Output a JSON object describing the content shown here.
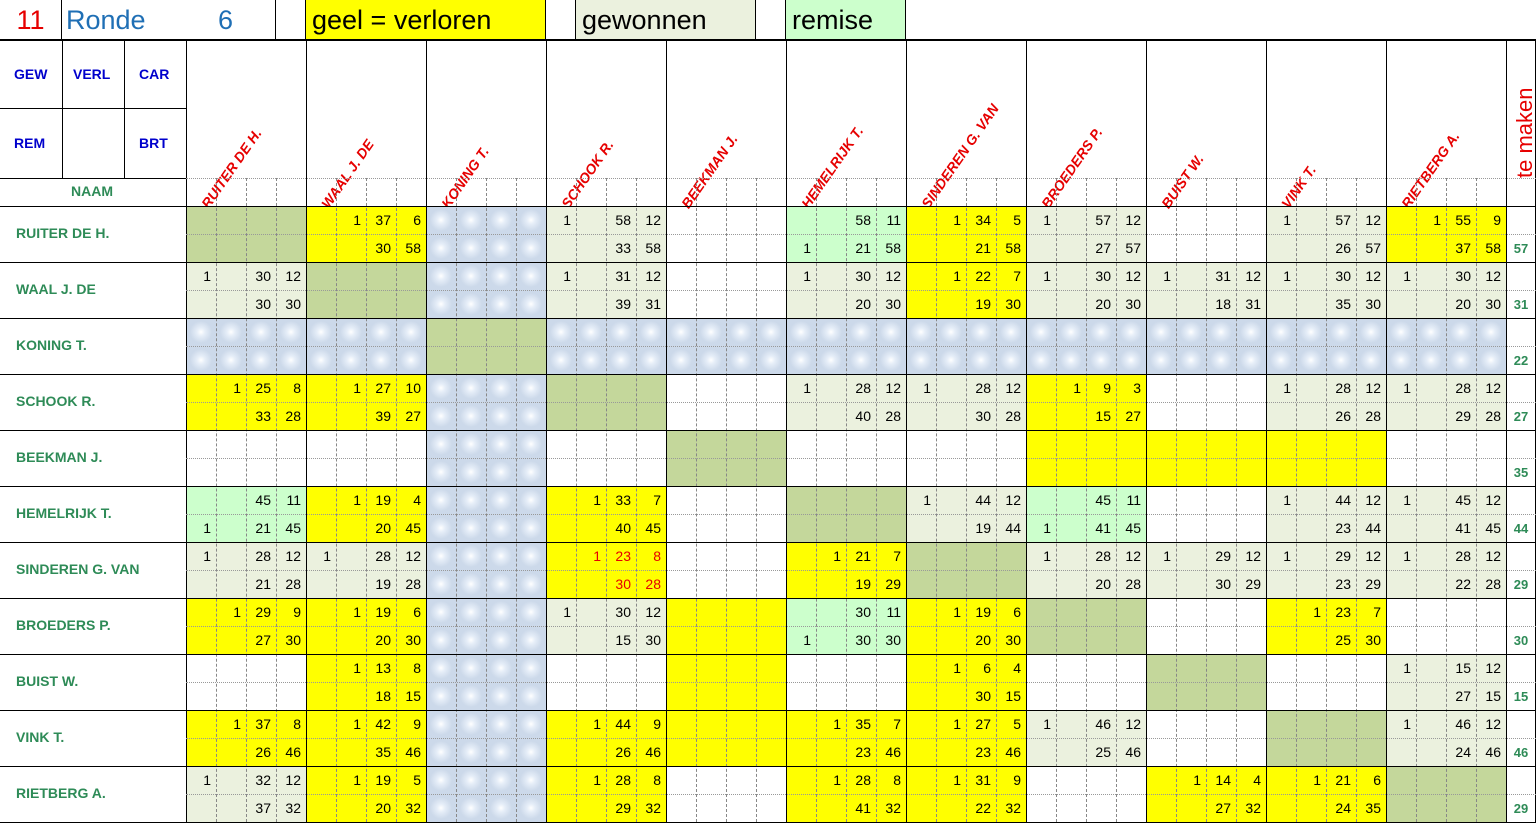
{
  "title_bar": {
    "number": "11",
    "ronde_label": "Ronde",
    "ronde_value": "6",
    "legend_yellow": "geel = verloren",
    "legend_won": "gewonnen",
    "legend_draw": "remise"
  },
  "header_labels": {
    "gew": "GEW",
    "verl": "VERL",
    "car": "CAR",
    "rem": "REM",
    "brt": "BRT",
    "naam": "NAAM",
    "te_maken": "te maken"
  },
  "colors": {
    "yellow": "#ffff00",
    "won": "#ebf1de",
    "draw": "#ccffcc",
    "self": "#c4d79b",
    "absent": "#ccd9ea",
    "red": "#e60000",
    "blue": "#0000cc",
    "green": "#2e8b57"
  },
  "players": [
    {
      "name": "RUITER DE H.",
      "col_name": "RUITER DE H.",
      "te_maken": "57"
    },
    {
      "name": "WAAL J. DE",
      "col_name": "WAAL J. DE",
      "te_maken": "31"
    },
    {
      "name": "KONING T.",
      "col_name": "KONING T.",
      "te_maken": "22"
    },
    {
      "name": "SCHOOK R.",
      "col_name": "SCHOOK R.",
      "te_maken": "27"
    },
    {
      "name": "BEEKMAN J.",
      "col_name": "BEEKMAN J.",
      "te_maken": "35"
    },
    {
      "name": "HEMELRIJK T.",
      "col_name": "HEMELRIJK T.",
      "te_maken": "44"
    },
    {
      "name": "SINDEREN G. VAN",
      "col_name": "SINDEREN G. VAN",
      "te_maken": "29"
    },
    {
      "name": "BROEDERS P.",
      "col_name": "BROEDERS P.",
      "te_maken": "30"
    },
    {
      "name": "BUIST W.",
      "col_name": "BUIST W.",
      "te_maken": "15"
    },
    {
      "name": "VINK T.",
      "col_name": "VINK T.",
      "te_maken": "46"
    },
    {
      "name": "RIETBERG A.",
      "col_name": "RIETBERG A.",
      "te_maken": "29"
    }
  ],
  "matrix": [
    [
      {
        "c": "self"
      },
      {
        "c": "y",
        "r1": [
          "",
          "1",
          "37",
          "6"
        ],
        "r2": [
          "",
          "",
          "30",
          "58"
        ]
      },
      {
        "c": "absent"
      },
      {
        "c": "w",
        "r1": [
          "1",
          "",
          "58",
          "12"
        ],
        "r2": [
          "",
          "",
          "33",
          "58"
        ]
      },
      {
        "c": "e"
      },
      {
        "c": "d",
        "r1": [
          "",
          "",
          "58",
          "11"
        ],
        "r2": [
          "1",
          "",
          "21",
          "58"
        ]
      },
      {
        "c": "y",
        "r1": [
          "",
          "1",
          "34",
          "5"
        ],
        "r2": [
          "",
          "",
          "21",
          "58"
        ]
      },
      {
        "c": "w",
        "r1": [
          "1",
          "",
          "57",
          "12"
        ],
        "r2": [
          "",
          "",
          "27",
          "57"
        ]
      },
      {
        "c": "e"
      },
      {
        "c": "w",
        "r1": [
          "1",
          "",
          "57",
          "12"
        ],
        "r2": [
          "",
          "",
          "26",
          "57"
        ]
      },
      {
        "c": "y",
        "r1": [
          "",
          "1",
          "55",
          "9"
        ],
        "r2": [
          "",
          "",
          "37",
          "58"
        ]
      }
    ],
    [
      {
        "c": "w",
        "r1": [
          "1",
          "",
          "30",
          "12"
        ],
        "r2": [
          "",
          "",
          "30",
          "30"
        ]
      },
      {
        "c": "self"
      },
      {
        "c": "absent"
      },
      {
        "c": "w",
        "r1": [
          "1",
          "",
          "31",
          "12"
        ],
        "r2": [
          "",
          "",
          "39",
          "31"
        ]
      },
      {
        "c": "e"
      },
      {
        "c": "w",
        "r1": [
          "1",
          "",
          "30",
          "12"
        ],
        "r2": [
          "",
          "",
          "20",
          "30"
        ]
      },
      {
        "c": "y",
        "r1": [
          "",
          "1",
          "22",
          "7"
        ],
        "r2": [
          "",
          "",
          "19",
          "30"
        ]
      },
      {
        "c": "w",
        "r1": [
          "1",
          "",
          "30",
          "12"
        ],
        "r2": [
          "",
          "",
          "20",
          "30"
        ]
      },
      {
        "c": "w",
        "r1": [
          "1",
          "",
          "31",
          "12"
        ],
        "r2": [
          "",
          "",
          "18",
          "31"
        ]
      },
      {
        "c": "w",
        "r1": [
          "1",
          "",
          "30",
          "12"
        ],
        "r2": [
          "",
          "",
          "35",
          "30"
        ]
      },
      {
        "c": "w",
        "r1": [
          "1",
          "",
          "30",
          "12"
        ],
        "r2": [
          "",
          "",
          "20",
          "30"
        ]
      }
    ],
    [
      {
        "c": "absent"
      },
      {
        "c": "absent"
      },
      {
        "c": "self"
      },
      {
        "c": "absent"
      },
      {
        "c": "absent"
      },
      {
        "c": "absent"
      },
      {
        "c": "absent"
      },
      {
        "c": "absent"
      },
      {
        "c": "absent"
      },
      {
        "c": "absent"
      },
      {
        "c": "absent"
      }
    ],
    [
      {
        "c": "y",
        "r1": [
          "",
          "1",
          "25",
          "8"
        ],
        "r2": [
          "",
          "",
          "33",
          "28"
        ]
      },
      {
        "c": "y",
        "r1": [
          "",
          "1",
          "27",
          "10"
        ],
        "r2": [
          "",
          "",
          "39",
          "27"
        ]
      },
      {
        "c": "absent"
      },
      {
        "c": "self"
      },
      {
        "c": "e"
      },
      {
        "c": "w",
        "r1": [
          "1",
          "",
          "28",
          "12"
        ],
        "r2": [
          "",
          "",
          "40",
          "28"
        ]
      },
      {
        "c": "w",
        "r1": [
          "1",
          "",
          "28",
          "12"
        ],
        "r2": [
          "",
          "",
          "30",
          "28"
        ]
      },
      {
        "c": "y",
        "r1": [
          "",
          "1",
          "9",
          "3"
        ],
        "r2": [
          "",
          "",
          "15",
          "27"
        ]
      },
      {
        "c": "e"
      },
      {
        "c": "w",
        "r1": [
          "1",
          "",
          "28",
          "12"
        ],
        "r2": [
          "",
          "",
          "26",
          "28"
        ]
      },
      {
        "c": "w",
        "r1": [
          "1",
          "",
          "28",
          "12"
        ],
        "r2": [
          "",
          "",
          "29",
          "28"
        ]
      }
    ],
    [
      {
        "c": "e"
      },
      {
        "c": "e"
      },
      {
        "c": "absent"
      },
      {
        "c": "e"
      },
      {
        "c": "self"
      },
      {
        "c": "e"
      },
      {
        "c": "e"
      },
      {
        "c": "y"
      },
      {
        "c": "y"
      },
      {
        "c": "y"
      },
      {
        "c": "e"
      }
    ],
    [
      {
        "c": "d",
        "r1": [
          "",
          "",
          "45",
          "11"
        ],
        "r2": [
          "1",
          "",
          "21",
          "45"
        ]
      },
      {
        "c": "y",
        "r1": [
          "",
          "1",
          "19",
          "4"
        ],
        "r2": [
          "",
          "",
          "20",
          "45"
        ]
      },
      {
        "c": "absent"
      },
      {
        "c": "y",
        "r1": [
          "",
          "1",
          "33",
          "7"
        ],
        "r2": [
          "",
          "",
          "40",
          "45"
        ]
      },
      {
        "c": "e"
      },
      {
        "c": "self"
      },
      {
        "c": "w",
        "r1": [
          "1",
          "",
          "44",
          "12"
        ],
        "r2": [
          "",
          "",
          "19",
          "44"
        ]
      },
      {
        "c": "d",
        "r1": [
          "",
          "",
          "45",
          "11"
        ],
        "r2": [
          "1",
          "",
          "41",
          "45"
        ]
      },
      {
        "c": "e"
      },
      {
        "c": "w",
        "r1": [
          "1",
          "",
          "44",
          "12"
        ],
        "r2": [
          "",
          "",
          "23",
          "44"
        ]
      },
      {
        "c": "w",
        "r1": [
          "1",
          "",
          "45",
          "12"
        ],
        "r2": [
          "",
          "",
          "41",
          "45"
        ]
      }
    ],
    [
      {
        "c": "w",
        "r1": [
          "1",
          "",
          "28",
          "12"
        ],
        "r2": [
          "",
          "",
          "21",
          "28"
        ]
      },
      {
        "c": "w",
        "r1": [
          "1",
          "",
          "28",
          "12"
        ],
        "r2": [
          "",
          "",
          "19",
          "28"
        ]
      },
      {
        "c": "absent"
      },
      {
        "c": "yr",
        "r1": [
          "",
          "1",
          "23",
          "8"
        ],
        "r2": [
          "",
          "",
          "30",
          "28"
        ]
      },
      {
        "c": "e"
      },
      {
        "c": "y",
        "r1": [
          "",
          "1",
          "21",
          "7"
        ],
        "r2": [
          "",
          "",
          "19",
          "29"
        ]
      },
      {
        "c": "self"
      },
      {
        "c": "w",
        "r1": [
          "1",
          "",
          "28",
          "12"
        ],
        "r2": [
          "",
          "",
          "20",
          "28"
        ]
      },
      {
        "c": "w",
        "r1": [
          "1",
          "",
          "29",
          "12"
        ],
        "r2": [
          "",
          "",
          "30",
          "29"
        ]
      },
      {
        "c": "w",
        "r1": [
          "1",
          "",
          "29",
          "12"
        ],
        "r2": [
          "",
          "",
          "23",
          "29"
        ]
      },
      {
        "c": "w",
        "r1": [
          "1",
          "",
          "28",
          "12"
        ],
        "r2": [
          "",
          "",
          "22",
          "28"
        ]
      }
    ],
    [
      {
        "c": "y",
        "r1": [
          "",
          "1",
          "29",
          "9"
        ],
        "r2": [
          "",
          "",
          "27",
          "30"
        ]
      },
      {
        "c": "y",
        "r1": [
          "",
          "1",
          "19",
          "6"
        ],
        "r2": [
          "",
          "",
          "20",
          "30"
        ]
      },
      {
        "c": "absent"
      },
      {
        "c": "w",
        "r1": [
          "1",
          "",
          "30",
          "12"
        ],
        "r2": [
          "",
          "",
          "15",
          "30"
        ]
      },
      {
        "c": "y"
      },
      {
        "c": "d",
        "r1": [
          "",
          "",
          "30",
          "11"
        ],
        "r2": [
          "1",
          "",
          "30",
          "30"
        ]
      },
      {
        "c": "y",
        "r1": [
          "",
          "1",
          "19",
          "6"
        ],
        "r2": [
          "",
          "",
          "20",
          "30"
        ]
      },
      {
        "c": "self"
      },
      {
        "c": "e"
      },
      {
        "c": "y",
        "r1": [
          "",
          "1",
          "23",
          "7"
        ],
        "r2": [
          "",
          "",
          "25",
          "30"
        ]
      },
      {
        "c": "e"
      }
    ],
    [
      {
        "c": "e"
      },
      {
        "c": "y",
        "r1": [
          "",
          "1",
          "13",
          "8"
        ],
        "r2": [
          "",
          "",
          "18",
          "15"
        ]
      },
      {
        "c": "absent"
      },
      {
        "c": "e"
      },
      {
        "c": "y"
      },
      {
        "c": "e"
      },
      {
        "c": "y",
        "r1": [
          "",
          "1",
          "6",
          "4"
        ],
        "r2": [
          "",
          "",
          "30",
          "15"
        ]
      },
      {
        "c": "e"
      },
      {
        "c": "self"
      },
      {
        "c": "e"
      },
      {
        "c": "w",
        "r1": [
          "1",
          "",
          "15",
          "12"
        ],
        "r2": [
          "",
          "",
          "27",
          "15"
        ]
      }
    ],
    [
      {
        "c": "y",
        "r1": [
          "",
          "1",
          "37",
          "8"
        ],
        "r2": [
          "",
          "",
          "26",
          "46"
        ]
      },
      {
        "c": "y",
        "r1": [
          "",
          "1",
          "42",
          "9"
        ],
        "r2": [
          "",
          "",
          "35",
          "46"
        ]
      },
      {
        "c": "absent"
      },
      {
        "c": "y",
        "r1": [
          "",
          "1",
          "44",
          "9"
        ],
        "r2": [
          "",
          "",
          "26",
          "46"
        ]
      },
      {
        "c": "y"
      },
      {
        "c": "y",
        "r1": [
          "",
          "1",
          "35",
          "7"
        ],
        "r2": [
          "",
          "",
          "23",
          "46"
        ]
      },
      {
        "c": "y",
        "r1": [
          "",
          "1",
          "27",
          "5"
        ],
        "r2": [
          "",
          "",
          "23",
          "46"
        ]
      },
      {
        "c": "w",
        "r1": [
          "1",
          "",
          "46",
          "12"
        ],
        "r2": [
          "",
          "",
          "25",
          "46"
        ]
      },
      {
        "c": "e"
      },
      {
        "c": "self"
      },
      {
        "c": "w",
        "r1": [
          "1",
          "",
          "46",
          "12"
        ],
        "r2": [
          "",
          "",
          "24",
          "46"
        ]
      }
    ],
    [
      {
        "c": "w",
        "r1": [
          "1",
          "",
          "32",
          "12"
        ],
        "r2": [
          "",
          "",
          "37",
          "32"
        ]
      },
      {
        "c": "y",
        "r1": [
          "",
          "1",
          "19",
          "5"
        ],
        "r2": [
          "",
          "",
          "20",
          "32"
        ]
      },
      {
        "c": "absent"
      },
      {
        "c": "y",
        "r1": [
          "",
          "1",
          "28",
          "8"
        ],
        "r2": [
          "",
          "",
          "29",
          "32"
        ]
      },
      {
        "c": "e"
      },
      {
        "c": "y",
        "r1": [
          "",
          "1",
          "28",
          "8"
        ],
        "r2": [
          "",
          "",
          "41",
          "32"
        ]
      },
      {
        "c": "y",
        "r1": [
          "",
          "1",
          "31",
          "9"
        ],
        "r2": [
          "",
          "",
          "22",
          "32"
        ]
      },
      {
        "c": "e"
      },
      {
        "c": "y",
        "r1": [
          "",
          "1",
          "14",
          "4"
        ],
        "r2": [
          "",
          "",
          "27",
          "32"
        ]
      },
      {
        "c": "y",
        "r1": [
          "",
          "1",
          "21",
          "6"
        ],
        "r2": [
          "",
          "",
          "24",
          "35"
        ]
      },
      {
        "c": "self"
      }
    ]
  ]
}
